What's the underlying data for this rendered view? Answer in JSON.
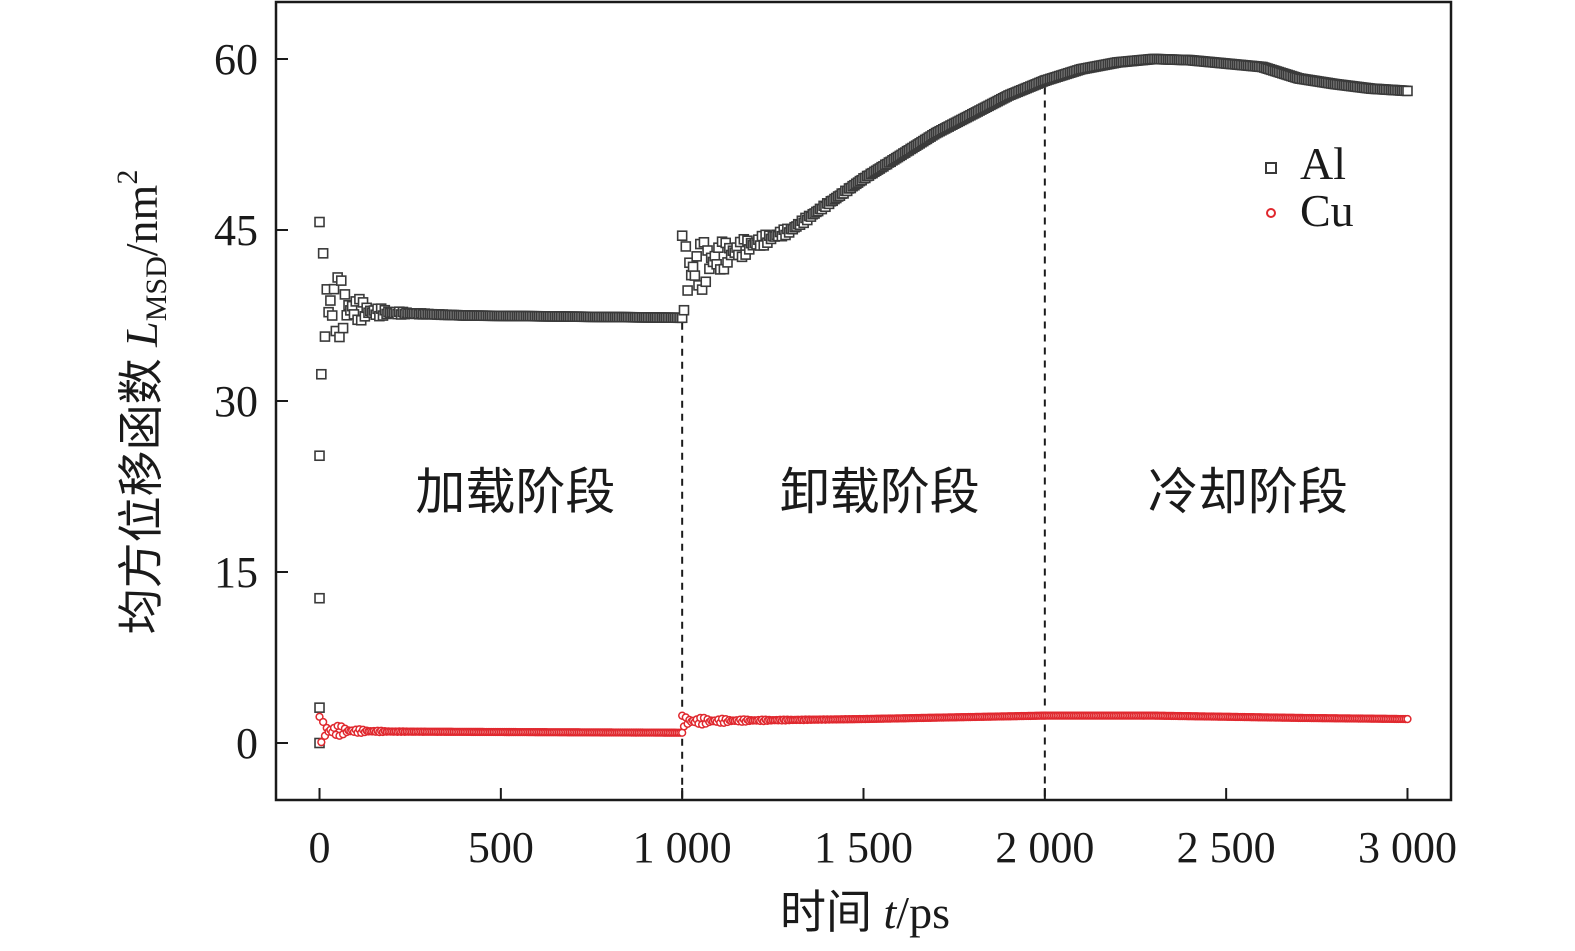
{
  "chart_data": {
    "type": "scatter",
    "xlabel": {
      "text": "时间 ",
      "var": "t",
      "unit": "/ps"
    },
    "ylabel": {
      "text": "均方位移函数 ",
      "var": "L",
      "sub": "MSD",
      "unit": "/nm",
      "sup": "2"
    },
    "xlim": [
      -120,
      3120
    ],
    "ylim": [
      -5,
      65
    ],
    "xticks": [
      0,
      500,
      1000,
      1500,
      2000,
      2500,
      3000
    ],
    "xtick_labels": [
      "0",
      "500",
      "1 000",
      "1 500",
      "2 000",
      "2 500",
      "3 000"
    ],
    "yticks": [
      0,
      15,
      30,
      45,
      60
    ],
    "ytick_labels": [
      "0",
      "15",
      "30",
      "45",
      "60"
    ],
    "phase_dividers": [
      1000,
      2000
    ],
    "phases": [
      {
        "label": "加载阶段",
        "x": 540,
        "y": 22
      },
      {
        "label": "卸载阶段",
        "x": 1545,
        "y": 22
      },
      {
        "label": "冷却阶段",
        "x": 2560,
        "y": 22
      }
    ],
    "legend": {
      "position": "top-right",
      "entries": [
        "Al",
        "Cu"
      ]
    },
    "series": [
      {
        "name": "Al",
        "marker": "square",
        "color": "#3a3a3a",
        "outliers": [
          [
            0,
            0
          ],
          [
            0,
            3.1
          ],
          [
            0,
            12.7
          ],
          [
            0,
            25.2
          ]
        ],
        "segments": [
          {
            "x0": 0,
            "x1": 1000,
            "kind": "oscillation",
            "base": [
              [
                0,
                38.5
              ],
              [
                150,
                37.8
              ],
              [
                400,
                37.5
              ],
              [
                1000,
                37.3
              ]
            ],
            "amp0": 7.2,
            "decay": 55
          },
          {
            "x0": 1000,
            "x1": 2000,
            "kind": "oscillation",
            "base": [
              [
                1000,
                41.0
              ],
              [
                1100,
                42.6
              ],
              [
                1300,
                45.0
              ],
              [
                1500,
                49.5
              ],
              [
                1700,
                53.5
              ],
              [
                1900,
                56.8
              ],
              [
                2000,
                58.1
              ]
            ],
            "amp0": 3.5,
            "decay": 110
          },
          {
            "x0": 2000,
            "x1": 3000,
            "kind": "smooth",
            "base": [
              [
                2000,
                58.1
              ],
              [
                2100,
                59.1
              ],
              [
                2200,
                59.7
              ],
              [
                2300,
                60.0
              ],
              [
                2400,
                59.9
              ],
              [
                2500,
                59.6
              ],
              [
                2600,
                59.3
              ],
              [
                2700,
                58.3
              ],
              [
                2800,
                57.8
              ],
              [
                2900,
                57.4
              ],
              [
                3000,
                57.2
              ]
            ]
          }
        ]
      },
      {
        "name": "Cu",
        "marker": "circle",
        "color": "#e0282e",
        "segments": [
          {
            "x0": 0,
            "x1": 1000,
            "kind": "oscillation",
            "base": [
              [
                0,
                1.1
              ],
              [
                200,
                1.0
              ],
              [
                1000,
                0.9
              ]
            ],
            "amp0": 1.2,
            "decay": 55
          },
          {
            "x0": 1000,
            "x1": 2000,
            "kind": "oscillation",
            "base": [
              [
                1000,
                1.9
              ],
              [
                1500,
                2.1
              ],
              [
                2000,
                2.4
              ]
            ],
            "amp0": 0.5,
            "decay": 110
          },
          {
            "x0": 2000,
            "x1": 3000,
            "kind": "smooth",
            "base": [
              [
                2000,
                2.4
              ],
              [
                2300,
                2.4
              ],
              [
                2700,
                2.2
              ],
              [
                3000,
                2.1
              ]
            ]
          }
        ]
      }
    ]
  }
}
